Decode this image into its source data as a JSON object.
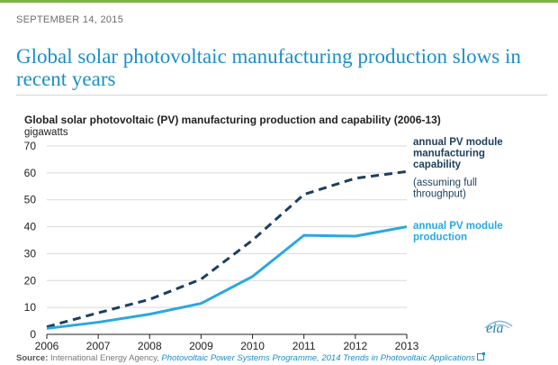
{
  "page": {
    "date": "SEPTEMBER 14, 2015",
    "headline": "Global solar photovoltaic manufacturing production slows in recent years"
  },
  "source": {
    "label": "Source:",
    "org": "International Energy Agency,",
    "link_text": "Photovoltaic Power Systems Programme, 2014 Trends in Photovoltaic Applications"
  },
  "logo": {
    "text": "eia"
  },
  "colors": {
    "headline": "#1b8fc6",
    "production": "#29a8e0",
    "capability": "#1c3f5e",
    "accent": "#7cb342"
  },
  "chart_data": {
    "type": "line",
    "title": "Global solar photovoltaic (PV) manufacturing production  and capability (2006-13)",
    "ylabel": "gigawatts",
    "xlabel": "",
    "x": [
      2006,
      2007,
      2008,
      2009,
      2010,
      2011,
      2012,
      2013
    ],
    "ylim": [
      0,
      70
    ],
    "yticks": [
      0,
      10,
      20,
      30,
      40,
      50,
      60,
      70
    ],
    "series": [
      {
        "name": "annual PV module manufacturing capability",
        "note": "(assuming full throughput)",
        "style": "dashed",
        "color": "#1c3f5e",
        "values": [
          2.8,
          8,
          13,
          20.5,
          35,
          52,
          58,
          60.5
        ]
      },
      {
        "name": "annual PV module production",
        "style": "solid",
        "color": "#29a8e0",
        "values": [
          2.2,
          4.5,
          7.5,
          11.5,
          21.5,
          36.8,
          36.5,
          40
        ]
      }
    ],
    "legend_labels": {
      "capability": [
        "annual PV module",
        "manufacturing",
        "capability"
      ],
      "capability_note": [
        "(assuming full",
        "throughput)"
      ],
      "production": [
        "annual PV module",
        "production"
      ]
    }
  }
}
